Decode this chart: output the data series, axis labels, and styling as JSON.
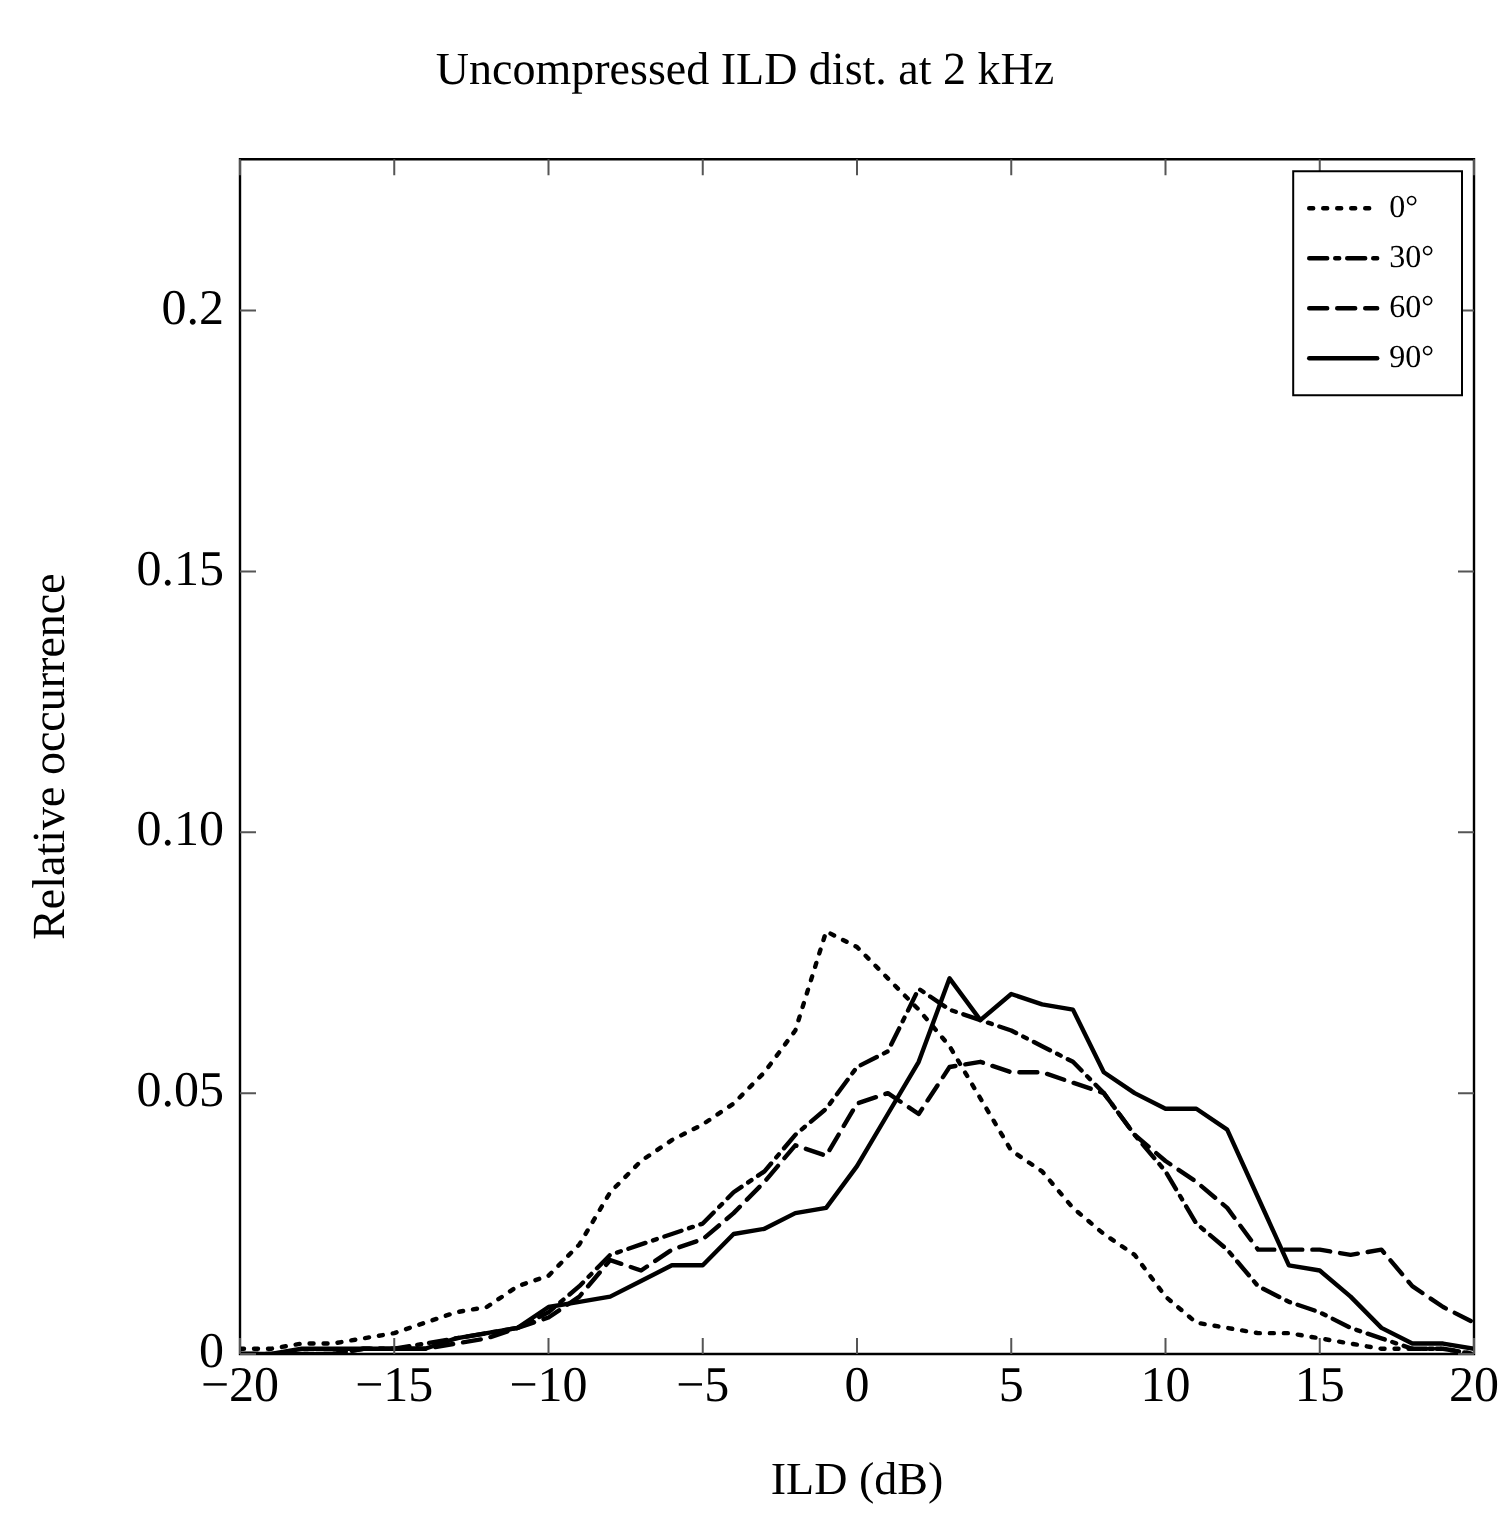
{
  "chart_data": {
    "type": "line",
    "title": "Uncompressed ILD dist. at 2 kHz",
    "xlabel": "ILD (dB)",
    "ylabel": "Relative occurrence",
    "x": [
      -20,
      -19,
      -18,
      -17,
      -16,
      -15,
      -14,
      -13,
      -12,
      -11,
      -10,
      -9,
      -8,
      -7,
      -6,
      -5,
      -4,
      -3,
      -2,
      -1,
      0,
      1,
      2,
      3,
      4,
      5,
      6,
      7,
      8,
      9,
      10,
      11,
      12,
      13,
      14,
      15,
      16,
      17,
      18,
      19,
      20
    ],
    "series": [
      {
        "name": "0°",
        "color": "#000000",
        "line_style": "dotted",
        "values": [
          0.001,
          0.001,
          0.002,
          0.002,
          0.003,
          0.004,
          0.006,
          0.008,
          0.009,
          0.013,
          0.015,
          0.021,
          0.031,
          0.037,
          0.041,
          0.044,
          0.048,
          0.054,
          0.062,
          0.081,
          0.078,
          0.072,
          0.066,
          0.059,
          0.049,
          0.039,
          0.035,
          0.028,
          0.023,
          0.019,
          0.011,
          0.006,
          0.005,
          0.004,
          0.004,
          0.003,
          0.002,
          0.001,
          0.001,
          0.001,
          0
        ]
      },
      {
        "name": "30°",
        "color": "#000000",
        "line_style": "dashdot",
        "values": [
          0,
          0,
          0,
          0,
          0.001,
          0.001,
          0.002,
          0.003,
          0.004,
          0.005,
          0.008,
          0.013,
          0.019,
          0.021,
          0.023,
          0.025,
          0.031,
          0.035,
          0.042,
          0.047,
          0.055,
          0.058,
          0.07,
          0.066,
          0.064,
          0.062,
          0.059,
          0.056,
          0.05,
          0.042,
          0.035,
          0.025,
          0.02,
          0.013,
          0.01,
          0.008,
          0.005,
          0.003,
          0.001,
          0.001,
          0
        ]
      },
      {
        "name": "60°",
        "color": "#000000",
        "line_style": "dashed",
        "values": [
          0,
          0,
          0,
          0,
          0.001,
          0.001,
          0.001,
          0.002,
          0.003,
          0.005,
          0.007,
          0.011,
          0.018,
          0.016,
          0.02,
          0.022,
          0.027,
          0.033,
          0.04,
          0.038,
          0.048,
          0.05,
          0.046,
          0.055,
          0.056,
          0.054,
          0.054,
          0.052,
          0.05,
          0.042,
          0.037,
          0.033,
          0.028,
          0.02,
          0.02,
          0.02,
          0.019,
          0.02,
          0.013,
          0.009,
          0.006
        ]
      },
      {
        "name": "90°",
        "color": "#000000",
        "line_style": "solid",
        "values": [
          0,
          0,
          0.001,
          0.001,
          0.001,
          0.001,
          0.001,
          0.003,
          0.004,
          0.005,
          0.009,
          0.01,
          0.011,
          0.014,
          0.017,
          0.017,
          0.023,
          0.024,
          0.027,
          0.028,
          0.036,
          0.046,
          0.056,
          0.072,
          0.064,
          0.069,
          0.067,
          0.066,
          0.054,
          0.05,
          0.047,
          0.047,
          0.043,
          0.03,
          0.017,
          0.016,
          0.011,
          0.005,
          0.002,
          0.002,
          0.001
        ]
      }
    ],
    "xlim": [
      -20,
      20
    ],
    "xticks": [
      {
        "value": -20,
        "label": "−20"
      },
      {
        "value": -15,
        "label": "−15"
      },
      {
        "value": -10,
        "label": "−10"
      },
      {
        "value": -5,
        "label": "−5"
      },
      0,
      5,
      10,
      15,
      20
    ],
    "ylim": [
      0,
      0.229
    ],
    "yticks": [
      0,
      0.05,
      {
        "value": 0.1,
        "label": "0.10"
      },
      0.15,
      0.2
    ],
    "grid": false,
    "legend": "top right",
    "marker": "none"
  }
}
